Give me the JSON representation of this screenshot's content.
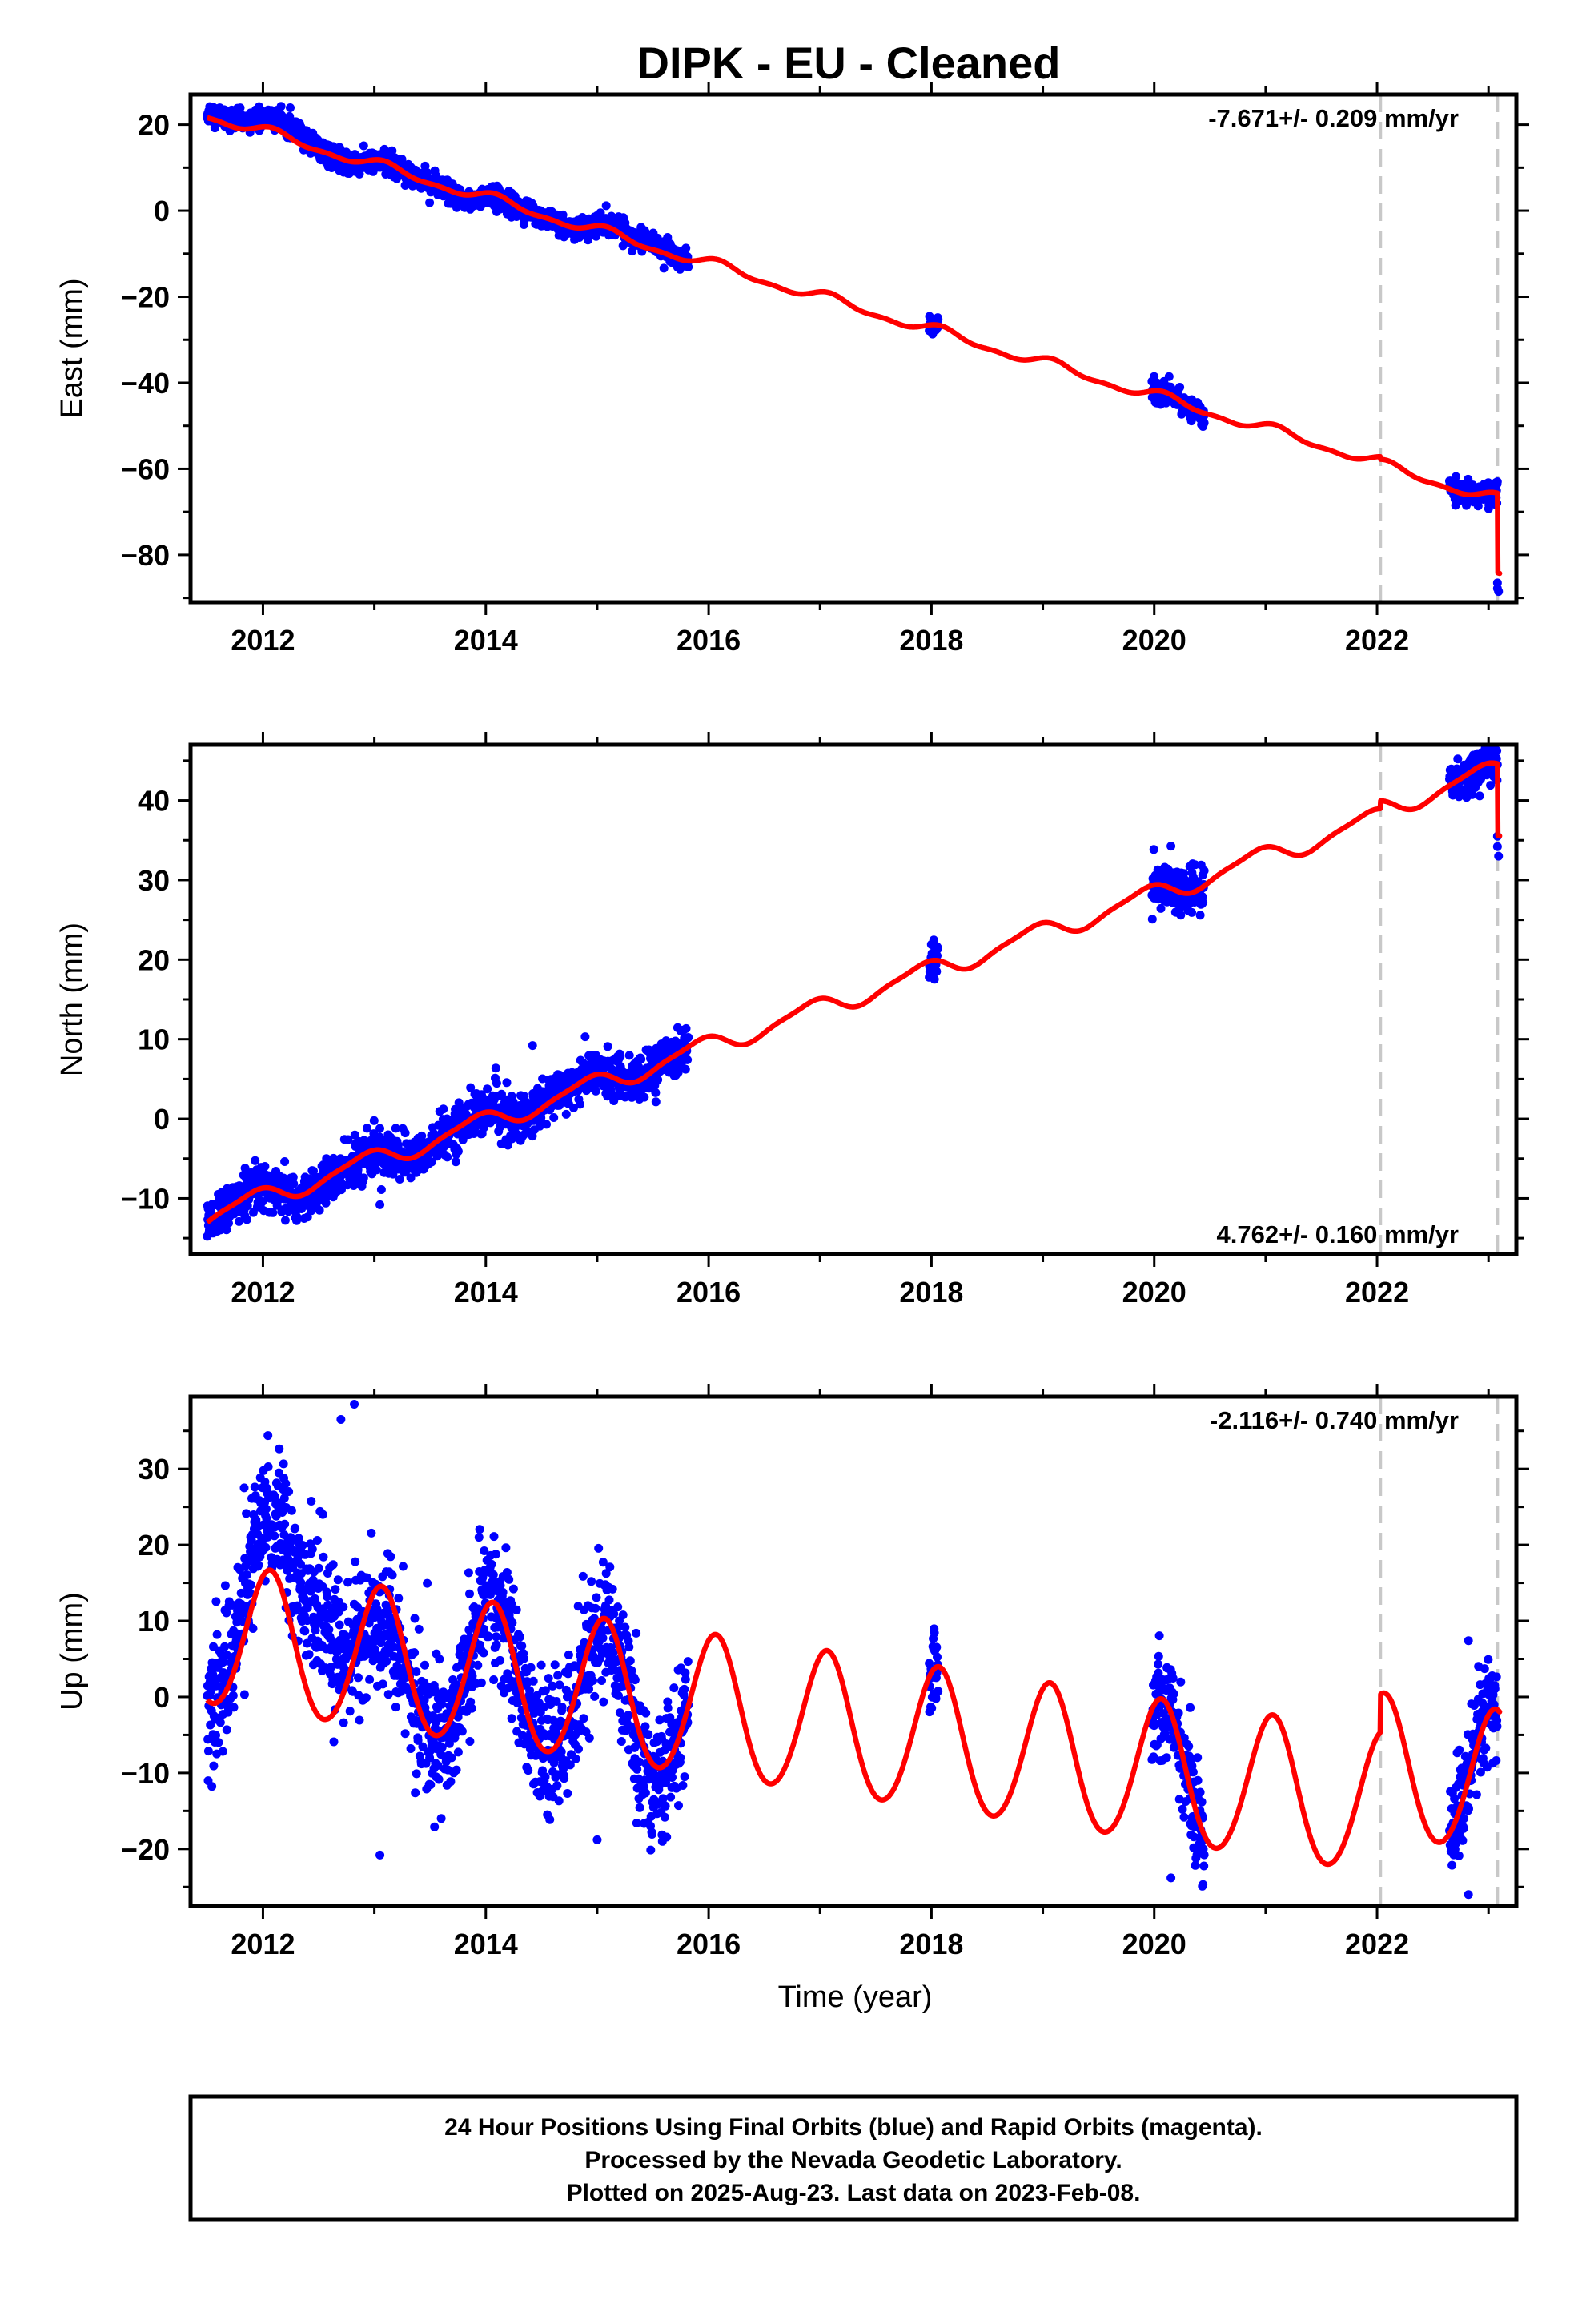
{
  "title": "DIPK  - EU - Cleaned",
  "colors": {
    "observations": "#0000ff",
    "model": "#ff0000",
    "equipment_change": "#c8c8c8",
    "frame": "#000000"
  },
  "chart_data": [
    {
      "type": "scatter",
      "component": "East",
      "ylabel": "East (mm)",
      "xlabel": "",
      "rate_text": "-7.671+/- 0.209 mm/yr",
      "rate_position": "top-right",
      "xlim": [
        2011.35,
        2023.25
      ],
      "ylim": [
        -91,
        27
      ],
      "xticks": [
        2012,
        2014,
        2016,
        2018,
        2020,
        2022
      ],
      "yticks": [
        -80,
        -60,
        -40,
        -20,
        0,
        20
      ],
      "grid": false,
      "equipment_change_lines": [
        2022.03,
        2023.08
      ],
      "model": {
        "name": "",
        "rate": -7.671,
        "intercept_at_2011_5": 22.2,
        "annual_amplitude": 1.1,
        "annual_phase": 0.9,
        "semiannual_amplitude": 0.5,
        "semiannual_phase": 0.6,
        "offsets": [
          {
            "epoch": 2022.03,
            "size": -0.6
          },
          {
            "epoch": 2023.08,
            "size": -18.5
          }
        ]
      },
      "observation_segments": [
        {
          "start": 2011.5,
          "end": 2015.82,
          "scatter": 1.2
        },
        {
          "start": 2017.98,
          "end": 2018.06,
          "scatter": 1.0
        },
        {
          "start": 2019.98,
          "end": 2020.45,
          "scatter": 1.2
        },
        {
          "start": 2022.65,
          "end": 2023.08,
          "scatter": 1.2
        }
      ],
      "residual_trend": [
        [
          2011.5,
          1.2
        ],
        [
          2012.3,
          2.5
        ],
        [
          2012.7,
          -0.8
        ],
        [
          2013.4,
          0.9
        ],
        [
          2013.8,
          -1.4
        ],
        [
          2014.4,
          0.2
        ],
        [
          2014.8,
          -0.6
        ],
        [
          2015.4,
          2.0
        ],
        [
          2015.8,
          0.0
        ]
      ],
      "extra_points": [
        [
          2023.08,
          -86.5
        ],
        [
          2023.08,
          -87.8
        ],
        [
          2023.09,
          -88.5
        ]
      ]
    },
    {
      "type": "scatter",
      "component": "North",
      "ylabel": "North (mm)",
      "xlabel": "",
      "rate_text": "4.762+/- 0.160 mm/yr",
      "rate_position": "bottom-right",
      "xlim": [
        2011.35,
        2023.25
      ],
      "ylim": [
        -17,
        47
      ],
      "xticks": [
        2012,
        2014,
        2016,
        2018,
        2020,
        2022
      ],
      "yticks": [
        -10,
        0,
        10,
        20,
        30,
        40
      ],
      "grid": false,
      "equipment_change_lines": [
        2022.03,
        2023.08
      ],
      "model": {
        "name": "",
        "rate": 4.762,
        "intercept_at_2011_5": -12.3,
        "annual_amplitude": 1.2,
        "annual_phase": 2.2,
        "semiannual_amplitude": 0.3,
        "semiannual_phase": 1.0,
        "offsets": [
          {
            "epoch": 2022.03,
            "size": 1.0
          },
          {
            "epoch": 2023.08,
            "size": -9.0
          }
        ]
      },
      "observation_segments": [
        {
          "start": 2011.5,
          "end": 2015.82,
          "scatter": 1.4
        },
        {
          "start": 2017.98,
          "end": 2018.06,
          "scatter": 1.2
        },
        {
          "start": 2019.98,
          "end": 2020.45,
          "scatter": 1.4
        },
        {
          "start": 2022.65,
          "end": 2023.08,
          "scatter": 1.3
        }
      ],
      "residual_trend": [
        [
          2011.5,
          0.0
        ],
        [
          2012.5,
          -0.5
        ],
        [
          2013.5,
          0.0
        ],
        [
          2014.5,
          0.5
        ],
        [
          2015.8,
          0.0
        ]
      ],
      "extra_points": [
        [
          2023.08,
          35.5
        ],
        [
          2023.08,
          34.2
        ],
        [
          2023.09,
          33.0
        ],
        [
          2014.42,
          9.2
        ],
        [
          2013.05,
          -10.8
        ]
      ]
    },
    {
      "type": "scatter",
      "component": "Up",
      "ylabel": "Up (mm)",
      "xlabel": "Time (year)",
      "rate_text": "-2.116+/- 0.740 mm/yr",
      "rate_position": "top-right",
      "xlim": [
        2011.35,
        2023.25
      ],
      "ylim": [
        -27.5,
        39.5
      ],
      "xticks": [
        2012,
        2014,
        2016,
        2018,
        2020,
        2022
      ],
      "yticks": [
        -20,
        -10,
        0,
        10,
        20,
        30
      ],
      "grid": false,
      "equipment_change_lines": [
        2022.03,
        2023.08
      ],
      "model": {
        "name": "",
        "rate": -2.116,
        "intercept_at_2011_5": 8.0,
        "annual_amplitude": 9.3,
        "annual_phase": 1.2,
        "semiannual_amplitude": 0.6,
        "semiannual_phase": 0.5,
        "offsets": [
          {
            "epoch": 2022.03,
            "size": 5.0
          },
          {
            "epoch": 2023.08,
            "size": 0.0
          }
        ]
      },
      "observation_segments": [
        {
          "start": 2011.5,
          "end": 2015.82,
          "scatter": 4.5
        },
        {
          "start": 2017.98,
          "end": 2018.06,
          "scatter": 3.0
        },
        {
          "start": 2019.98,
          "end": 2020.45,
          "scatter": 3.5
        },
        {
          "start": 2022.65,
          "end": 2023.08,
          "scatter": 3.5
        }
      ],
      "residual_trend": [
        [
          2011.5,
          0.0
        ],
        [
          2012.0,
          7.0
        ],
        [
          2012.5,
          14.0
        ],
        [
          2013.0,
          -5.0
        ],
        [
          2013.5,
          0.0
        ],
        [
          2014.5,
          0.0
        ],
        [
          2015.5,
          -2.0
        ],
        [
          2015.8,
          0.0
        ]
      ],
      "extra_points": [
        [
          2012.82,
          38.5
        ],
        [
          2012.7,
          36.5
        ],
        [
          2013.05,
          -20.8
        ],
        [
          2015.0,
          -18.8
        ],
        [
          2020.15,
          -23.8
        ],
        [
          2022.82,
          -26.0
        ],
        [
          2022.82,
          7.4
        ]
      ]
    }
  ],
  "footer": {
    "line1": "24 Hour Positions Using Final Orbits (blue) and Rapid Orbits (magenta).",
    "line2": "Processed by the Nevada Geodetic Laboratory.",
    "line3": "Plotted on 2025-Aug-23. Last data on 2023-Feb-08."
  }
}
